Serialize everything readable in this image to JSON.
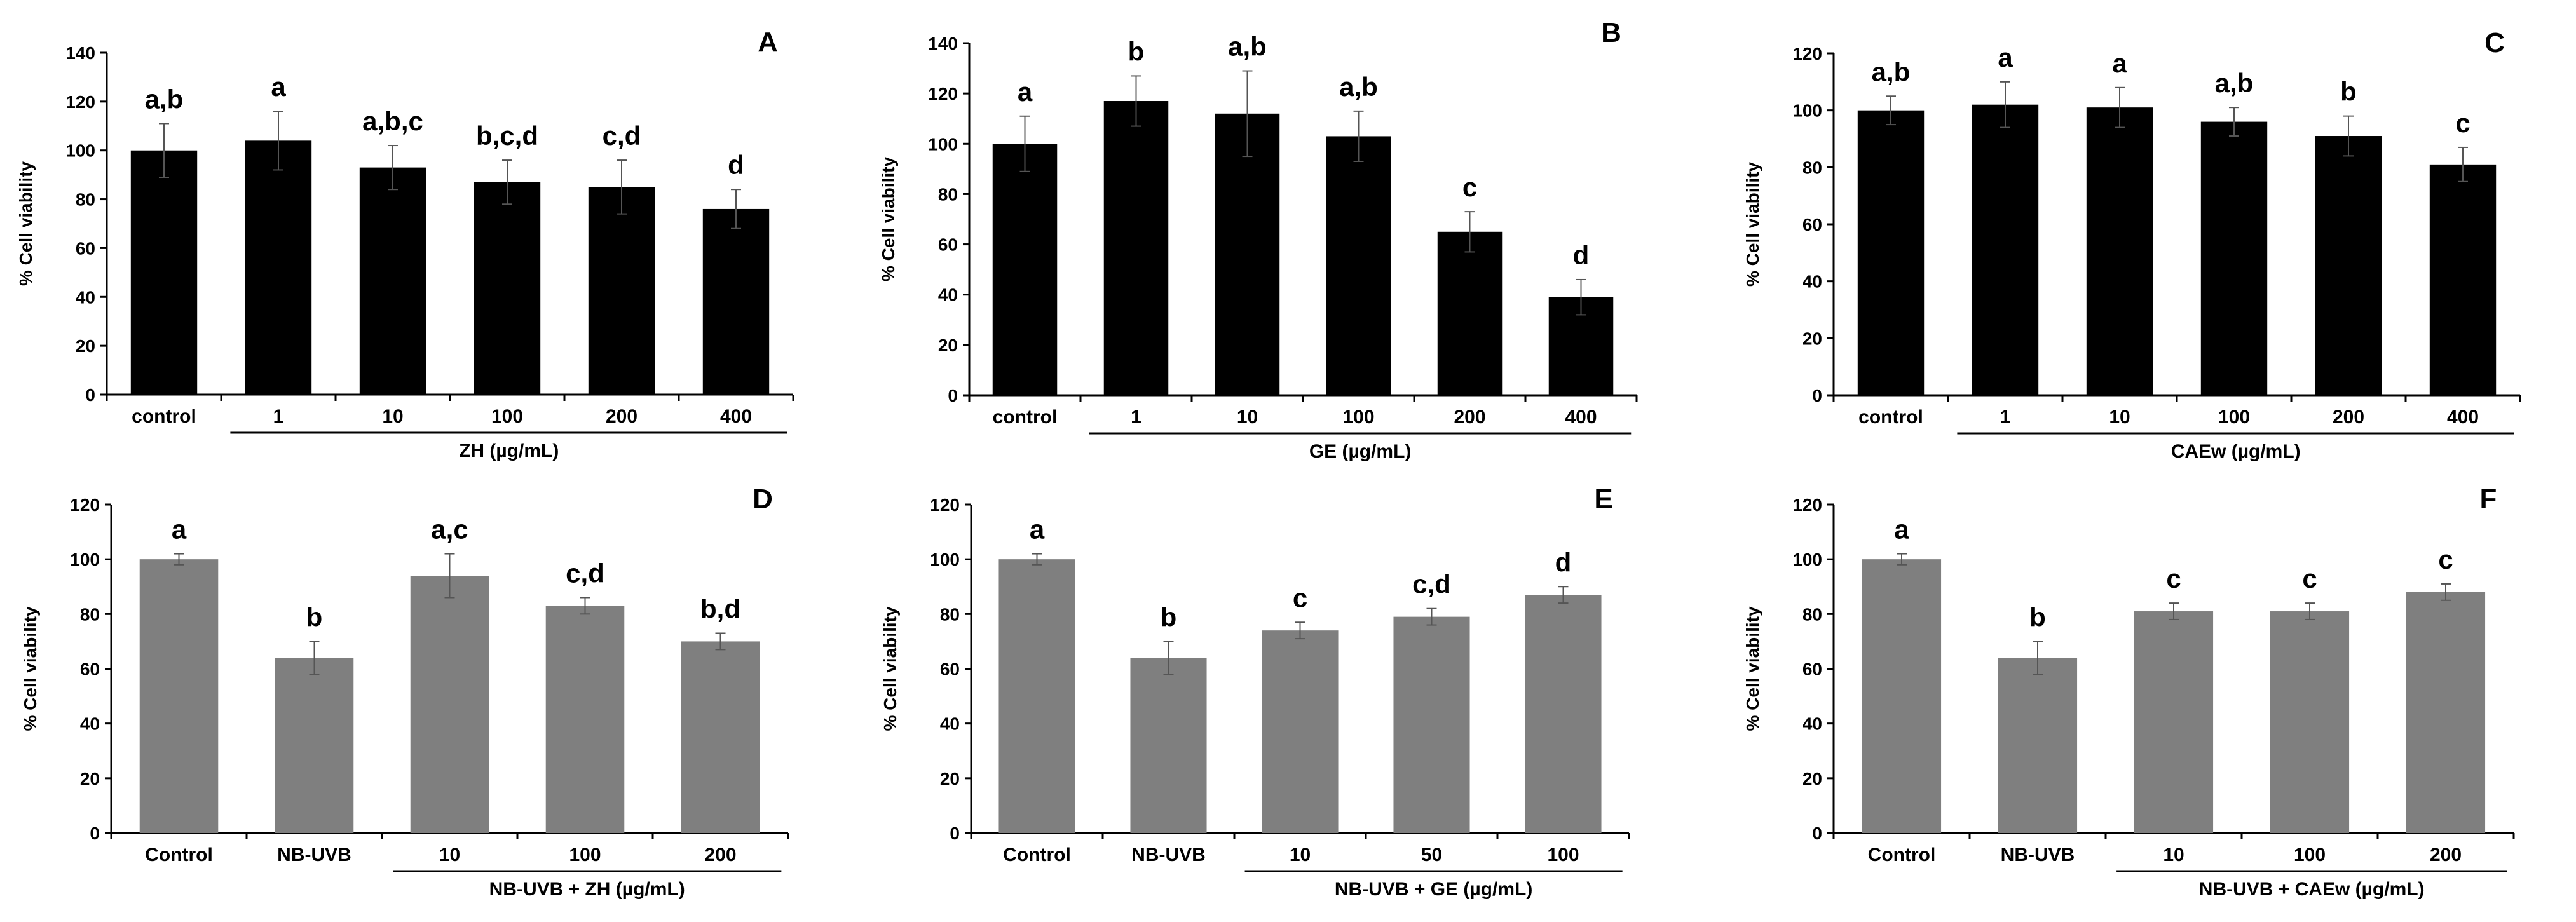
{
  "figure": "Cell viability panels A–F",
  "colors": {
    "black_bar": "#000000",
    "gray_bar": "#7f7f7f",
    "axis": "#000000"
  },
  "chart_data": [
    {
      "panel": "A",
      "type": "bar",
      "barColor": "#000000",
      "ylabel": "% Cell viability",
      "ylim": [
        0,
        140
      ],
      "yticks": [
        0,
        20,
        40,
        60,
        80,
        100,
        120,
        140
      ],
      "categories": [
        "control",
        "1",
        "10",
        "100",
        "200",
        "400"
      ],
      "values": [
        100,
        104,
        93,
        87,
        85,
        76
      ],
      "errors": [
        11,
        12,
        9,
        9,
        11,
        8
      ],
      "sig": [
        "a,b",
        "a",
        "a,b,c",
        "b,c,d",
        "c,d",
        "d"
      ],
      "xlabel": "ZH (µg/mL)",
      "groupStart": 1
    },
    {
      "panel": "B",
      "type": "bar",
      "barColor": "#000000",
      "ylabel": "% Cell viability",
      "ylim": [
        0,
        140
      ],
      "yticks": [
        0,
        20,
        40,
        60,
        80,
        100,
        120,
        140
      ],
      "categories": [
        "control",
        "1",
        "10",
        "100",
        "200",
        "400"
      ],
      "values": [
        100,
        117,
        112,
        103,
        65,
        39
      ],
      "errors": [
        11,
        10,
        17,
        10,
        8,
        7
      ],
      "sig": [
        "a",
        "b",
        "a,b",
        "a,b",
        "c",
        "d"
      ],
      "xlabel": "GE (µg/mL)",
      "groupStart": 1
    },
    {
      "panel": "C",
      "type": "bar",
      "barColor": "#000000",
      "ylabel": "% Cell viability",
      "ylim": [
        0,
        120
      ],
      "yticks": [
        0,
        20,
        40,
        60,
        80,
        100,
        120
      ],
      "categories": [
        "control",
        "1",
        "10",
        "100",
        "200",
        "400"
      ],
      "values": [
        100,
        102,
        101,
        96,
        91,
        81
      ],
      "errors": [
        5,
        8,
        7,
        5,
        7,
        6
      ],
      "sig": [
        "a,b",
        "a",
        "a",
        "a,b",
        "b",
        "c"
      ],
      "xlabel": "CAEw  (µg/mL)",
      "groupStart": 1
    },
    {
      "panel": "D",
      "type": "bar",
      "barColor": "#7f7f7f",
      "ylabel": "% Cell viability",
      "ylim": [
        0,
        120
      ],
      "yticks": [
        0,
        20,
        40,
        60,
        80,
        100,
        120
      ],
      "categories": [
        "Control",
        "NB-UVB",
        "10",
        "100",
        "200"
      ],
      "values": [
        100,
        64,
        94,
        83,
        70
      ],
      "errors": [
        2,
        6,
        8,
        3,
        3
      ],
      "sig": [
        "a",
        "b",
        "a,c",
        "c,d",
        "b,d"
      ],
      "xlabel": "NB-UVB + ZH (µg/mL)",
      "groupStart": 2
    },
    {
      "panel": "E",
      "type": "bar",
      "barColor": "#7f7f7f",
      "ylabel": "% Cell viability",
      "ylim": [
        0,
        120
      ],
      "yticks": [
        0,
        20,
        40,
        60,
        80,
        100,
        120
      ],
      "categories": [
        "Control",
        "NB-UVB",
        "10",
        "50",
        "100"
      ],
      "values": [
        100,
        64,
        74,
        79,
        87
      ],
      "errors": [
        2,
        6,
        3,
        3,
        3
      ],
      "sig": [
        "a",
        "b",
        "c",
        "c,d",
        "d"
      ],
      "xlabel": "NB-UVB + GE (µg/mL)",
      "groupStart": 2
    },
    {
      "panel": "F",
      "type": "bar",
      "barColor": "#7f7f7f",
      "ylabel": "% Cell viability",
      "ylim": [
        0,
        120
      ],
      "yticks": [
        0,
        20,
        40,
        60,
        80,
        100,
        120
      ],
      "categories": [
        "Control",
        "NB-UVB",
        "10",
        "100",
        "200"
      ],
      "values": [
        100,
        64,
        81,
        81,
        88
      ],
      "errors": [
        2,
        6,
        3,
        3,
        3
      ],
      "sig": [
        "a",
        "b",
        "c",
        "c",
        "c"
      ],
      "xlabel": "NB-UVB + CAEw (µg/mL)",
      "groupStart": 2
    }
  ]
}
